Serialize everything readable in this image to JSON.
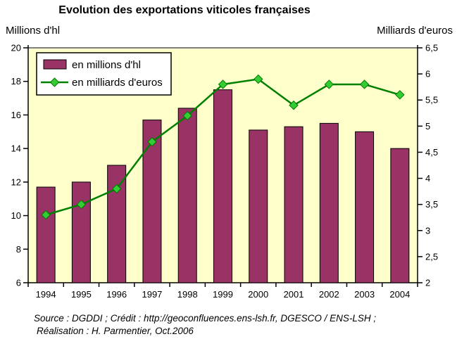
{
  "title": "Evolution des exportations viticoles françaises",
  "left_axis_unit": "Millions d'hl",
  "right_axis_unit": "Milliards d'euros",
  "footer": {
    "line1": "Source : DGDDI ; Crédit : http://geoconfluences.ens-lsh.fr, DGESCO / ENS-LSH ;",
    "line2": "Réalisation : H. Parmentier, Oct.2006"
  },
  "colors": {
    "plot_background": "#FFFFCC",
    "plot_top_border": "#808080",
    "axis_color": "#000000",
    "bar_fill": "#993366",
    "bar_border": "#000000",
    "line_color": "#008000",
    "marker_fill": "#33CC33",
    "marker_border": "#007700",
    "legend_background": "#FFFFFF",
    "legend_border": "#000000"
  },
  "chart_data": {
    "type": "combo",
    "title": "Evolution des exportations viticoles françaises",
    "categories": [
      "1994",
      "1995",
      "1996",
      "1997",
      "1998",
      "1999",
      "2000",
      "2001",
      "2002",
      "2003",
      "2004"
    ],
    "series": [
      {
        "name": "en millions d'hl",
        "type": "bar",
        "axis": "left",
        "color": "#993366",
        "values": [
          11.7,
          12.0,
          13.0,
          15.7,
          16.4,
          17.5,
          15.1,
          15.3,
          15.5,
          15.0,
          14.0
        ]
      },
      {
        "name": "en milliards d'euros",
        "type": "line",
        "axis": "right",
        "color": "#008000",
        "marker_color": "#33CC33",
        "values": [
          3.3,
          3.5,
          3.8,
          4.7,
          5.2,
          5.8,
          5.9,
          5.4,
          5.8,
          5.8,
          5.6
        ]
      }
    ],
    "left_axis": {
      "label": "Millions d'hl",
      "min": 6,
      "max": 20,
      "step": 2
    },
    "right_axis": {
      "label": "Milliards d'euros",
      "min": 2,
      "max": 6.5,
      "step": 0.5,
      "decimal": "comma"
    },
    "legend": {
      "position": "top-left",
      "entries": [
        "en millions d'hl",
        "en milliards d'euros"
      ]
    },
    "grid": false,
    "plot_background": "#FFFFCC"
  }
}
